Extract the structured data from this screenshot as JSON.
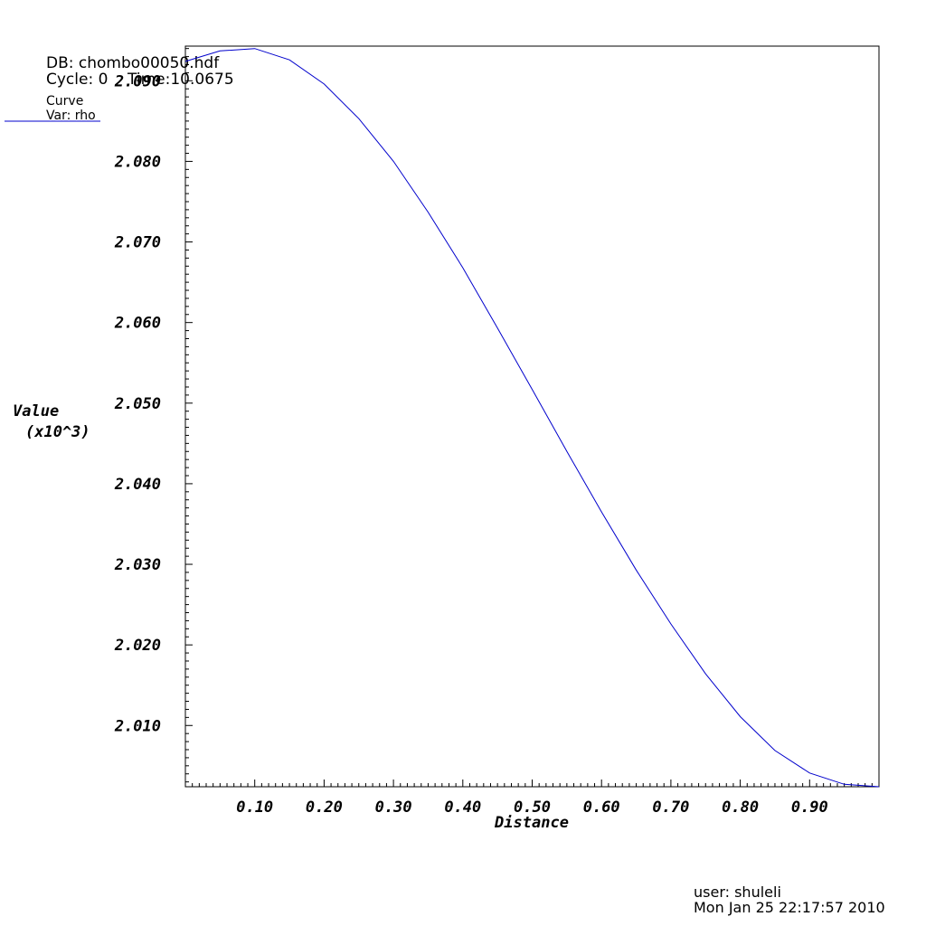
{
  "header": {
    "db_label": "DB: chombo00050.hdf",
    "cycle_time_label": "Cycle: 0    Time:10.0675",
    "legend_title": "Curve",
    "legend_var": "Var: rho"
  },
  "footer": {
    "user": "user: shuleli",
    "date": "Mon Jan 25 22:17:57 2010"
  },
  "colors": {
    "curve": "#0000cc",
    "axes": "#000000",
    "background": "#ffffff"
  },
  "chart_data": {
    "type": "line",
    "title": "",
    "xlabel": "Distance",
    "ylabel": "Value",
    "ylabel_scale": "(x10^3)",
    "xlim": [
      0.0,
      1.0
    ],
    "ylim": [
      2.0024,
      2.0943
    ],
    "xticks": [
      0.1,
      0.2,
      0.3,
      0.4,
      0.5,
      0.6,
      0.7,
      0.8,
      0.9
    ],
    "xtick_labels": [
      "0.10",
      "0.20",
      "0.30",
      "0.40",
      "0.50",
      "0.60",
      "0.70",
      "0.80",
      "0.90"
    ],
    "yticks": [
      2.01,
      2.02,
      2.03,
      2.04,
      2.05,
      2.06,
      2.07,
      2.08,
      2.09
    ],
    "ytick_labels": [
      "2.010",
      "2.020",
      "2.030",
      "2.040",
      "2.050",
      "2.060",
      "2.070",
      "2.080",
      "2.090"
    ],
    "grid": false,
    "legend_position": "top-left",
    "series": [
      {
        "name": "rho",
        "x": [
          0.0,
          0.05,
          0.1,
          0.15,
          0.2,
          0.25,
          0.3,
          0.35,
          0.4,
          0.45,
          0.5,
          0.55,
          0.6,
          0.65,
          0.7,
          0.75,
          0.8,
          0.85,
          0.9,
          0.95,
          1.0
        ],
        "y": [
          2.0924,
          2.0937,
          2.094,
          2.0926,
          2.0896,
          2.0853,
          2.08,
          2.0737,
          2.0668,
          2.0593,
          2.0517,
          2.044,
          2.0365,
          2.0293,
          2.0226,
          2.0164,
          2.0111,
          2.0069,
          2.0041,
          2.0027,
          2.0024
        ]
      }
    ]
  }
}
